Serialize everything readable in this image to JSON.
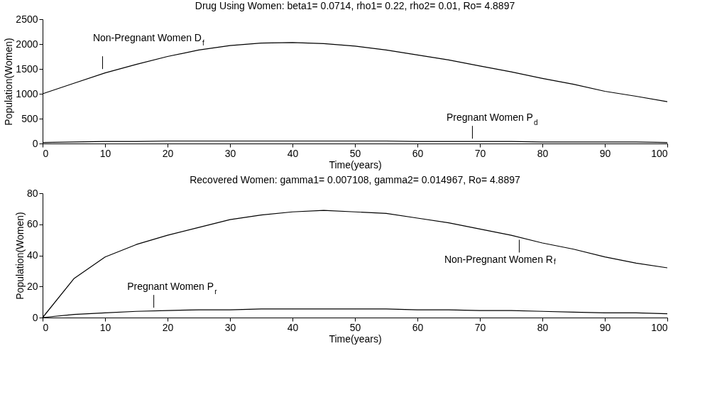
{
  "chart_data": [
    {
      "type": "line",
      "title": "Drug Using Women: beta1= 0.0714, rho1= 0.22, rho2= 0.01, Ro= 4.8897",
      "xlabel": "Time(years)",
      "ylabel": "Population(Women)",
      "x": [
        0,
        5,
        10,
        15,
        20,
        25,
        30,
        35,
        40,
        45,
        50,
        55,
        60,
        65,
        70,
        75,
        80,
        85,
        90,
        95,
        100
      ],
      "series": [
        {
          "color": "#000000",
          "values": [
            1000,
            1210,
            1420,
            1590,
            1750,
            1880,
            1970,
            2020,
            2030,
            2010,
            1960,
            1880,
            1780,
            1680,
            1560,
            1440,
            1310,
            1190,
            1050,
            950,
            840
          ]
        },
        {
          "color": "#000000",
          "values": [
            20,
            30,
            40,
            40,
            50,
            50,
            50,
            50,
            50,
            50,
            50,
            50,
            40,
            40,
            40,
            40,
            30,
            30,
            30,
            30,
            20
          ]
        }
      ],
      "xlim": [
        0,
        100
      ],
      "xticks": [
        0,
        10,
        20,
        30,
        40,
        50,
        60,
        70,
        80,
        90,
        100
      ],
      "ylim": [
        0,
        2500
      ],
      "yticks": [
        0,
        500,
        1000,
        1500,
        2000,
        2500
      ],
      "grid": false,
      "legend": false,
      "annotations": [
        {
          "text": "Non-Pregnant Women D$_{f}$",
          "x": 9.6,
          "y": 1440
        },
        {
          "text": "Pregnant Women P$_{d}$",
          "x": 68.8,
          "y": 40
        }
      ]
    },
    {
      "type": "line",
      "title": "Recovered Women: gamma1= 0.007108, gamma2= 0.014967, Ro= 4.8897",
      "xlabel": "Time(years)",
      "ylabel": "Population(Women)",
      "x": [
        0,
        5,
        10,
        15,
        20,
        25,
        30,
        35,
        40,
        45,
        50,
        55,
        60,
        65,
        70,
        75,
        80,
        85,
        90,
        95,
        100
      ],
      "series": [
        {
          "color": "#000000",
          "values": [
            0,
            25,
            39,
            47,
            53,
            58,
            63,
            66,
            68,
            69,
            68,
            67,
            64,
            61,
            57,
            53,
            48,
            44,
            39,
            35,
            32
          ]
        },
        {
          "color": "#000000",
          "values": [
            0,
            2,
            3,
            4,
            4.5,
            5,
            5,
            5.5,
            5.5,
            5.5,
            5.5,
            5.5,
            5,
            5,
            4.5,
            4.5,
            4,
            3.5,
            3,
            3,
            2.5
          ]
        }
      ],
      "xlim": [
        0,
        100
      ],
      "xticks": [
        0,
        10,
        20,
        30,
        40,
        50,
        60,
        70,
        80,
        90,
        100
      ],
      "ylim": [
        0,
        80
      ],
      "yticks": [
        0,
        20,
        40,
        60,
        80
      ],
      "grid": false,
      "legend": false,
      "annotations": [
        {
          "text": "Non-Pregnant Women R$_{f}$",
          "x": 76.3,
          "y": 51
        },
        {
          "text": "Pregnant Women P$_{r}$",
          "x": 17.8,
          "y": 4.5
        }
      ]
    }
  ]
}
